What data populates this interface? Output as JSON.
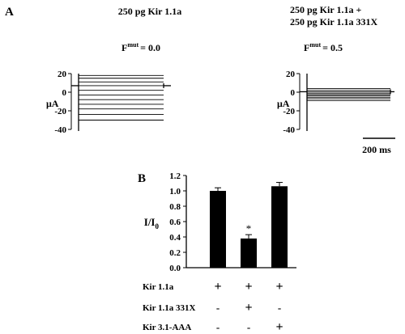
{
  "panel_a": {
    "label": "A",
    "left": {
      "title": "250 pg Kir 1.1a",
      "fmut_label": "F",
      "fmut_sup": "mut",
      "fmut_value": "= 0.0",
      "y_unit": "μA"
    },
    "right": {
      "title_line1": "250 pg Kir 1.1a +",
      "title_line2": "250 pg Kir 1.1a 331X",
      "fmut_label": "F",
      "fmut_sup": "mut",
      "fmut_value": "= 0.5",
      "y_unit": "μA"
    },
    "scale_bar_label": "200 ms"
  },
  "panel_b": {
    "label": "B",
    "row_labels": [
      "Kir 1.1a",
      "Kir 1.1a 331X",
      "Kir 3.1-AAA"
    ],
    "row_marks": [
      [
        "+",
        "+",
        "+"
      ],
      [
        "-",
        "+",
        "-"
      ],
      [
        "-",
        "-",
        "+"
      ]
    ]
  },
  "chart_data": [
    {
      "type": "line",
      "panel": "A-left",
      "ylabel": "μA",
      "ylim": [
        -40,
        20
      ],
      "yticks": [
        "20",
        "0",
        "-20",
        "-40"
      ],
      "trace_levels": [
        18,
        15,
        11,
        7,
        2,
        -3,
        -8,
        -13,
        -18,
        -24,
        -30
      ],
      "holding_level": 7
    },
    {
      "type": "line",
      "panel": "A-right",
      "ylabel": "μA",
      "ylim": [
        -40,
        20
      ],
      "yticks": [
        "20",
        "0",
        "-20",
        "-40"
      ],
      "trace_levels": [
        4,
        2,
        0.5,
        -1,
        -2.5,
        -4,
        -5.5,
        -7,
        -9
      ],
      "holding_level": 0.5
    },
    {
      "type": "bar",
      "panel": "B",
      "ylabel": "I/I",
      "ylabel_sub": "0",
      "ylim": [
        0,
        1.2
      ],
      "yticks": [
        "0.0",
        "0.2",
        "0.4",
        "0.6",
        "0.8",
        "1.0",
        "1.2"
      ],
      "values": [
        1.0,
        0.38,
        1.06
      ],
      "errors": [
        0.04,
        0.05,
        0.05
      ],
      "annotations": [
        "",
        "*",
        ""
      ]
    }
  ]
}
